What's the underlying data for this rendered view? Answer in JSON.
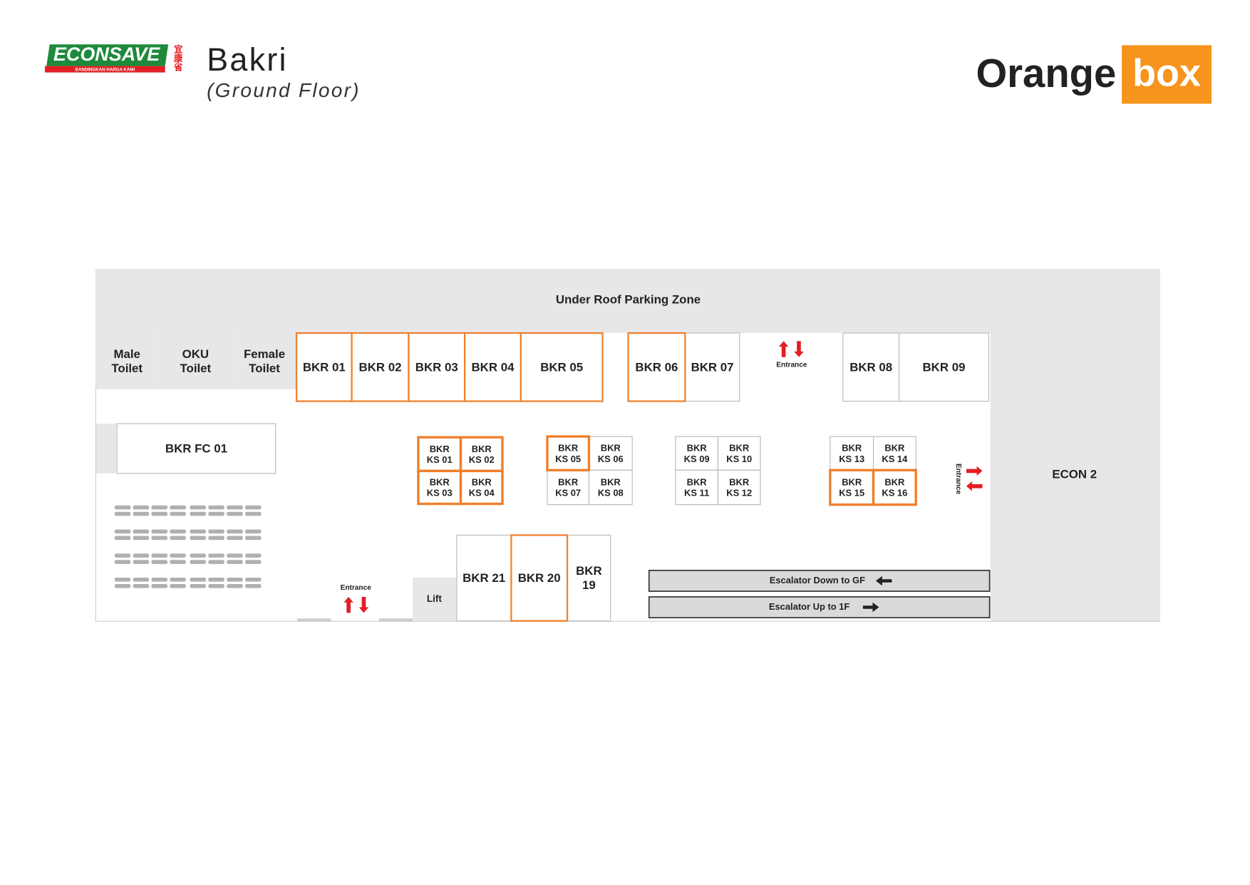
{
  "header": {
    "econsave": {
      "name": "ECONSAVE",
      "tagline": "BANDINGKAN HARGA KAMI",
      "chinese": "宜康省"
    },
    "title": "Bakri",
    "subtitle": "(Ground Floor)",
    "orangebox": {
      "word1": "Orange",
      "word2": "box"
    }
  },
  "plan": {
    "parking": "Under Roof Parking Zone",
    "econ": "ECON 2",
    "lift": "Lift",
    "entrances": [
      "Entrance",
      "Entrance",
      "Entrance"
    ],
    "escalators": [
      "Escalator Down to GF",
      "Escalator Up to 1F"
    ],
    "units": [
      {
        "lines": [
          "Male",
          "Toilet"
        ],
        "highlight": false
      },
      {
        "lines": [
          "OKU",
          "Toilet"
        ],
        "highlight": false
      },
      {
        "lines": [
          "Female",
          "Toilet"
        ],
        "highlight": false
      },
      {
        "lines": [
          "BKR 01"
        ],
        "highlight": true
      },
      {
        "lines": [
          "BKR 02"
        ],
        "highlight": true
      },
      {
        "lines": [
          "BKR 03"
        ],
        "highlight": true
      },
      {
        "lines": [
          "BKR 04"
        ],
        "highlight": true
      },
      {
        "lines": [
          "BKR 05"
        ],
        "highlight": true
      },
      {
        "lines": [
          "BKR 06"
        ],
        "highlight": true
      },
      {
        "lines": [
          "BKR 07"
        ],
        "highlight": false
      },
      {
        "lines": [
          "BKR 08"
        ],
        "highlight": false
      },
      {
        "lines": [
          "BKR 09"
        ],
        "highlight": false
      },
      {
        "lines": [
          "BKR FC 01"
        ],
        "highlight": false
      },
      {
        "lines": [
          "BKR",
          "KS 01"
        ],
        "highlight": true
      },
      {
        "lines": [
          "BKR",
          "KS 02"
        ],
        "highlight": true
      },
      {
        "lines": [
          "BKR",
          "KS 03"
        ],
        "highlight": true
      },
      {
        "lines": [
          "BKR",
          "KS 04"
        ],
        "highlight": true
      },
      {
        "lines": [
          "BKR",
          "KS 05"
        ],
        "highlight": true
      },
      {
        "lines": [
          "BKR",
          "KS 06"
        ],
        "highlight": false
      },
      {
        "lines": [
          "BKR",
          "KS 07"
        ],
        "highlight": false
      },
      {
        "lines": [
          "BKR",
          "KS 08"
        ],
        "highlight": false
      },
      {
        "lines": [
          "BKR",
          "KS 09"
        ],
        "highlight": false
      },
      {
        "lines": [
          "BKR",
          "KS 10"
        ],
        "highlight": false
      },
      {
        "lines": [
          "BKR",
          "KS 11"
        ],
        "highlight": false
      },
      {
        "lines": [
          "BKR",
          "KS 12"
        ],
        "highlight": false
      },
      {
        "lines": [
          "BKR",
          "KS 13"
        ],
        "highlight": false
      },
      {
        "lines": [
          "BKR",
          "KS 14"
        ],
        "highlight": false
      },
      {
        "lines": [
          "BKR",
          "KS 15"
        ],
        "highlight": true
      },
      {
        "lines": [
          "BKR",
          "KS 16"
        ],
        "highlight": true
      },
      {
        "lines": [
          "BKR 21"
        ],
        "highlight": false
      },
      {
        "lines": [
          "BKR 20"
        ],
        "highlight": true
      },
      {
        "lines": [
          "BKR",
          "19"
        ],
        "highlight": false
      }
    ]
  }
}
